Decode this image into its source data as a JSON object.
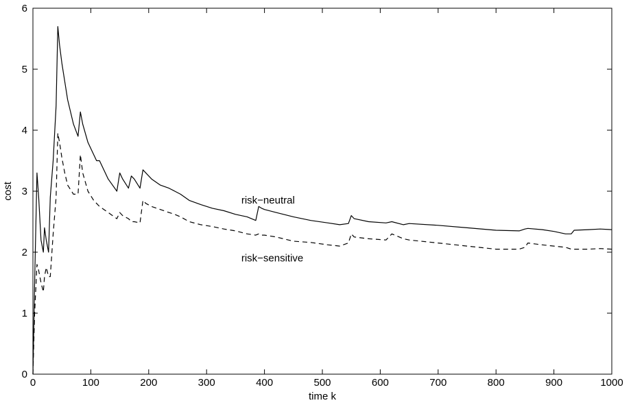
{
  "chart_data": {
    "type": "line",
    "title": "",
    "xlabel": "time k",
    "ylabel": "cost",
    "xlim": [
      0,
      1000
    ],
    "ylim": [
      0,
      6
    ],
    "xticks": [
      0,
      100,
      200,
      300,
      400,
      500,
      600,
      700,
      800,
      900,
      1000
    ],
    "yticks": [
      0,
      1,
      2,
      3,
      4,
      5,
      6
    ],
    "grid": false,
    "legend": "none",
    "annotations": [
      {
        "text": "risk−neutral",
        "x": 360,
        "y": 2.8
      },
      {
        "text": "risk−sensitive",
        "x": 360,
        "y": 1.85
      }
    ],
    "series": [
      {
        "name": "risk−neutral",
        "style": "solid",
        "color": "#000000",
        "x": [
          0,
          3,
          7,
          10,
          14,
          18,
          20,
          23,
          27,
          30,
          35,
          40,
          43,
          46,
          50,
          55,
          60,
          70,
          78,
          82,
          86,
          95,
          105,
          110,
          115,
          130,
          145,
          150,
          155,
          165,
          170,
          175,
          185,
          190,
          195,
          205,
          220,
          235,
          245,
          255,
          270,
          290,
          310,
          330,
          350,
          370,
          385,
          390,
          395,
          400,
          420,
          450,
          480,
          510,
          530,
          545,
          550,
          555,
          580,
          610,
          620,
          640,
          650,
          700,
          750,
          800,
          840,
          850,
          855,
          880,
          900,
          920,
          930,
          935,
          960,
          980,
          1000
        ],
        "y": [
          0,
          1.5,
          3.3,
          2.9,
          2.2,
          2.0,
          2.4,
          2.2,
          2.0,
          2.9,
          3.5,
          4.4,
          5.7,
          5.4,
          5.1,
          4.8,
          4.5,
          4.1,
          3.9,
          4.3,
          4.1,
          3.8,
          3.6,
          3.5,
          3.5,
          3.2,
          3.0,
          3.3,
          3.2,
          3.05,
          3.25,
          3.2,
          3.05,
          3.35,
          3.3,
          3.2,
          3.1,
          3.05,
          3.0,
          2.95,
          2.85,
          2.78,
          2.72,
          2.68,
          2.62,
          2.58,
          2.52,
          2.75,
          2.72,
          2.7,
          2.65,
          2.58,
          2.52,
          2.48,
          2.45,
          2.47,
          2.6,
          2.55,
          2.5,
          2.48,
          2.5,
          2.45,
          2.47,
          2.44,
          2.4,
          2.36,
          2.35,
          2.38,
          2.39,
          2.37,
          2.34,
          2.3,
          2.3,
          2.36,
          2.37,
          2.38,
          2.37
        ]
      },
      {
        "name": "risk−sensitive",
        "style": "dashed",
        "color": "#000000",
        "x": [
          0,
          3,
          7,
          10,
          14,
          18,
          20,
          23,
          27,
          30,
          35,
          40,
          43,
          46,
          50,
          55,
          60,
          70,
          78,
          82,
          86,
          95,
          105,
          110,
          115,
          130,
          145,
          150,
          155,
          165,
          170,
          175,
          185,
          190,
          195,
          205,
          220,
          235,
          245,
          255,
          270,
          290,
          310,
          330,
          350,
          370,
          385,
          390,
          395,
          400,
          420,
          450,
          480,
          510,
          530,
          545,
          550,
          555,
          580,
          610,
          620,
          640,
          650,
          700,
          750,
          800,
          840,
          850,
          855,
          880,
          900,
          920,
          930,
          935,
          960,
          980,
          1000
        ],
        "y": [
          0,
          1.0,
          1.8,
          1.7,
          1.5,
          1.35,
          1.6,
          1.75,
          1.6,
          1.6,
          2.3,
          2.9,
          3.95,
          3.8,
          3.55,
          3.3,
          3.1,
          2.95,
          2.95,
          3.6,
          3.3,
          3.0,
          2.85,
          2.8,
          2.75,
          2.65,
          2.55,
          2.65,
          2.6,
          2.55,
          2.5,
          2.5,
          2.48,
          2.85,
          2.8,
          2.75,
          2.7,
          2.65,
          2.62,
          2.58,
          2.5,
          2.45,
          2.42,
          2.38,
          2.35,
          2.3,
          2.28,
          2.3,
          2.28,
          2.28,
          2.25,
          2.18,
          2.16,
          2.12,
          2.1,
          2.15,
          2.3,
          2.25,
          2.22,
          2.2,
          2.3,
          2.22,
          2.2,
          2.15,
          2.1,
          2.05,
          2.05,
          2.08,
          2.15,
          2.12,
          2.1,
          2.08,
          2.05,
          2.05,
          2.05,
          2.06,
          2.05
        ]
      }
    ]
  }
}
